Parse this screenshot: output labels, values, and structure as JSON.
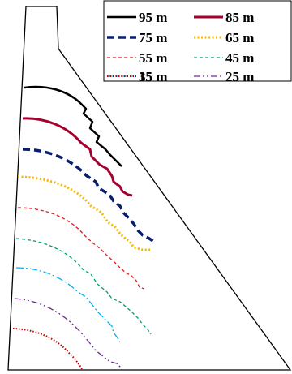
{
  "legend": {
    "entries": [
      {
        "label": "95 m",
        "color": "#000000",
        "dash": "none",
        "sample_width": 2.5
      },
      {
        "label": "85 m",
        "color": "#a5002e",
        "dash": "none",
        "sample_width": 3
      },
      {
        "label": "75 m",
        "color": "#0a1f6b",
        "dash": "9 5",
        "sample_width": 3.5
      },
      {
        "label": "65 m",
        "color": "#f5b800",
        "dash": "2 2.5",
        "sample_width": 3
      },
      {
        "label": "55 m",
        "color": "#e8141e",
        "dash": "4 3",
        "sample_width": 1.3
      },
      {
        "label": "45 m",
        "color": "#00a060",
        "dash": "4 3",
        "sample_width": 1.3
      },
      {
        "label": "35 m",
        "color": "#00aeef",
        "dash": "9 3 2 3",
        "sample_width": 1.3
      },
      {
        "label": "25 m",
        "color": "#6a2d8f",
        "dash": "8 3 2 3 2 3",
        "sample_width": 1.3
      },
      {
        "label": "15 m",
        "color": "#c00000",
        "dash": "1.5 2",
        "sample_width": 2
      }
    ]
  }
}
